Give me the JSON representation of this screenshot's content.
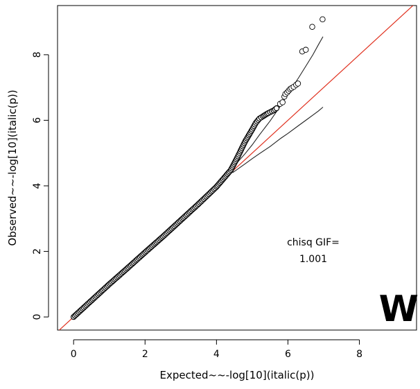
{
  "chart_data": {
    "type": "scatter",
    "xlabel": "Expected~~-log[10](italic(p))",
    "ylabel": "Observed~~-log[10](italic(p))",
    "xlim": [
      -0.45,
      9.6
    ],
    "ylim": [
      -0.4,
      9.5
    ],
    "x_ticks": [
      0,
      2,
      4,
      6,
      8
    ],
    "y_ticks": [
      0,
      2,
      4,
      6,
      8
    ],
    "grid": false,
    "annotation": [
      "chisq GIF=",
      "1.001"
    ],
    "panel_letter": "W",
    "reference_line": {
      "x": [
        -0.45,
        9.6
      ],
      "y": [
        -0.45,
        9.6
      ],
      "color": "#e0301e"
    },
    "confidence_upper": {
      "x": [
        4.45,
        4.8,
        5.0,
        5.2,
        5.5,
        5.8,
        6.0,
        6.3,
        6.5,
        6.7,
        6.85,
        6.98
      ],
      "y": [
        4.55,
        4.98,
        5.25,
        5.55,
        5.98,
        6.45,
        6.8,
        7.3,
        7.65,
        8.0,
        8.3,
        8.55
      ]
    },
    "confidence_lower": {
      "x": [
        4.45,
        4.8,
        5.0,
        5.2,
        5.5,
        5.8,
        6.0,
        6.3,
        6.5,
        6.7,
        6.85,
        6.98
      ],
      "y": [
        4.4,
        4.67,
        4.83,
        4.98,
        5.2,
        5.45,
        5.6,
        5.84,
        6.0,
        6.16,
        6.28,
        6.4
      ]
    },
    "dense_points": {
      "x": [
        0,
        0.5,
        1.0,
        1.5,
        2.0,
        2.5,
        3.0,
        3.5,
        4.0,
        4.4,
        4.6,
        4.8,
        5.0,
        5.1,
        5.2,
        5.3,
        5.45,
        5.6,
        5.72
      ],
      "y": [
        0,
        0.5,
        1.0,
        1.48,
        1.97,
        2.45,
        2.95,
        3.45,
        3.97,
        4.48,
        4.9,
        5.35,
        5.72,
        5.92,
        6.05,
        6.12,
        6.22,
        6.3,
        6.4
      ]
    },
    "sparse_points": {
      "x": [
        5.78,
        5.85,
        5.9,
        5.93,
        5.98,
        6.02,
        6.06,
        6.1,
        6.16,
        6.23,
        6.28,
        6.4,
        6.5,
        6.68,
        6.97
      ],
      "y": [
        6.5,
        6.55,
        6.72,
        6.8,
        6.85,
        6.9,
        6.95,
        6.98,
        7.02,
        7.08,
        7.12,
        8.1,
        8.15,
        8.85,
        9.08
      ]
    }
  }
}
